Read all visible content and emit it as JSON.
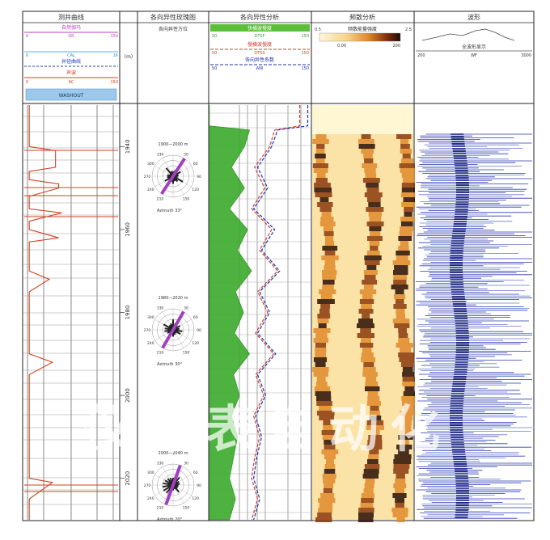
{
  "tracks": [
    {
      "id": "t1",
      "title": "测井曲线",
      "header_curves": [
        {
          "name": "自然伽马",
          "min": "0",
          "mid": "GR",
          "max": "150",
          "color": "#c040c0"
        },
        {
          "name": "井径曲线",
          "min": "6",
          "mid": "CAL",
          "max": "16",
          "color": "#2040c0",
          "dashed": true
        },
        {
          "name": "声波",
          "min": "0",
          "mid": "AC",
          "max": "150",
          "color": "#d04020"
        }
      ],
      "badge": "WASHOUT"
    },
    {
      "id": "depth",
      "title": "",
      "unit": "(m)"
    },
    {
      "id": "t2",
      "title": "各向异性玫瑰图",
      "subtitle": "各向异性方位",
      "roses": [
        {
          "range": "1900—2000 m",
          "stat": "Azimuth 33°",
          "angle": 33
        },
        {
          "range": "1980—2020 m",
          "stat": "Azimuth 30°",
          "angle": 30
        },
        {
          "range": "2000—2040 m",
          "stat": "Azimuth 20°",
          "angle": 20
        }
      ],
      "rose_labels": [
        "330",
        "30",
        "300",
        "60",
        "270",
        "90",
        "240",
        "120",
        "210",
        "150"
      ]
    },
    {
      "id": "t3",
      "title": "各向异性分析",
      "header_curves": [
        {
          "name": "快横波慢度",
          "min": "50",
          "mid": "DTSF",
          "max": "150",
          "color": "#30a030",
          "fill": true
        },
        {
          "name": "慢横波慢度",
          "min": "50",
          "mid": "DTSS",
          "max": "150",
          "color": "#d04030",
          "dashed": true
        },
        {
          "name": "各向异性系数",
          "min": "50",
          "mid": "ANI",
          "max": "150",
          "color": "#2030b0",
          "dashed": true
        }
      ]
    },
    {
      "id": "t4",
      "title": "频散分析",
      "scale_label": "频散能量强度",
      "scale_min": "0",
      "scale_max": "100",
      "scale_left": "0.5",
      "scale_right": "2.5",
      "scale_sub_left": "0.00",
      "scale_sub_right": "200"
    },
    {
      "id": "t5",
      "title": "波形",
      "header_curve": "全波形显示",
      "min": "200",
      "mid": "WF",
      "max": "3000"
    }
  ],
  "depth_labels": [
    "1940",
    "1960",
    "1980",
    "2000",
    "2020"
  ],
  "watermark_text": "仪器表自动化",
  "chart_data": {
    "type": "line",
    "y_axis": "depth (m)",
    "ylim": [
      1930,
      2030
    ],
    "depth_ticks": [
      1940,
      1960,
      1980,
      2000,
      2020
    ],
    "series": [
      {
        "name": "声波",
        "depth": [
          1930,
          1940,
          1941,
          1945,
          1946,
          1948,
          1949,
          1950,
          1952,
          1955,
          1956,
          1958,
          1960,
          1962,
          1963,
          1965,
          1970,
          1972,
          1975,
          1980,
          1985,
          1990,
          1992,
          1995,
          2000,
          2003,
          2010,
          2013,
          2020,
          2021,
          2025,
          2030
        ],
        "values": [
          8,
          8,
          50,
          50,
          8,
          8,
          55,
          55,
          8,
          8,
          60,
          8,
          8,
          55,
          8,
          8,
          8,
          40,
          8,
          8,
          8,
          8,
          45,
          8,
          8,
          8,
          8,
          8,
          8,
          45,
          8,
          8
        ]
      },
      {
        "name": "快横波慢度",
        "depth": [
          1930,
          1935,
          1936,
          1940,
          1945,
          1950,
          1955,
          1960,
          1965,
          1970,
          1975,
          1980,
          1985,
          1990,
          1995,
          2000,
          2005,
          2010,
          2015,
          2020,
          2025,
          2030
        ],
        "values": [
          50,
          50,
          90,
          85,
          72,
          85,
          70,
          88,
          78,
          92,
          76,
          84,
          75,
          90,
          74,
          80,
          72,
          78,
          74,
          70,
          76,
          70
        ]
      },
      {
        "name": "慢横波慢度",
        "depth": [
          1930,
          1935,
          1936,
          1940,
          1945,
          1950,
          1955,
          1960,
          1965,
          1970,
          1975,
          1980,
          1985,
          1990,
          1995,
          2000,
          2005,
          2010,
          2015,
          2020,
          2025,
          2030
        ],
        "values": [
          140,
          140,
          115,
          110,
          95,
          105,
          92,
          112,
          100,
          118,
          98,
          108,
          96,
          114,
          96,
          104,
          94,
          100,
          95,
          92,
          98,
          92
        ]
      },
      {
        "name": "各向异性系数",
        "depth": [
          1930,
          1935,
          1936,
          1940,
          1945,
          1950,
          1955,
          1960,
          1965,
          1970,
          1975,
          1980,
          1985,
          1990,
          1995,
          2000,
          2005,
          2010,
          2015,
          2020,
          2025,
          2030
        ],
        "values": [
          148,
          148,
          118,
          112,
          98,
          108,
          94,
          115,
          102,
          120,
          100,
          110,
          98,
          116,
          98,
          106,
          96,
          102,
          97,
          94,
          100,
          94
        ]
      }
    ]
  }
}
